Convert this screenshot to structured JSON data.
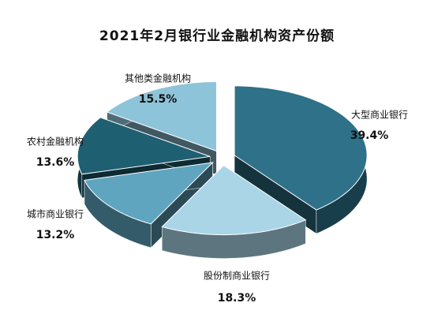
{
  "chart_data": {
    "type": "pie3d",
    "title": "2021年2月银行业金融机构资产份额",
    "categories": [
      "大型商业银行",
      "股份制商业银行",
      "城市商业银行",
      "农村金融机构",
      "其他类金融机构"
    ],
    "values": [
      39.4,
      18.3,
      13.2,
      13.6,
      15.5
    ],
    "value_labels": [
      "39.4%",
      "18.3%",
      "13.2%",
      "13.6%",
      "15.5%"
    ],
    "colors": [
      "#2e7188",
      "#a9d5e7",
      "#5fa5bf",
      "#1f5f72",
      "#8ec4d9"
    ]
  }
}
